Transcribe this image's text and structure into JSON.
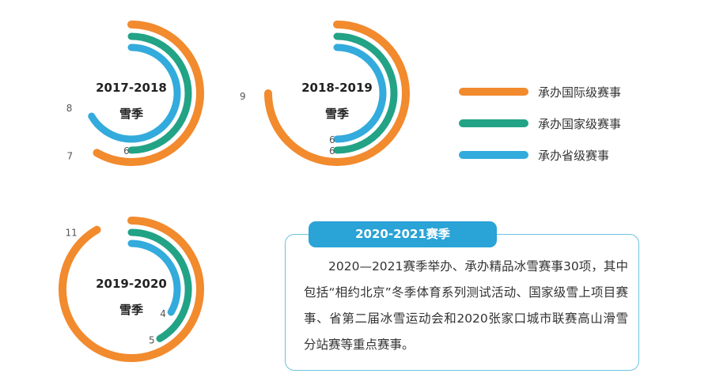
{
  "chart_data": {
    "type": "radial-bar",
    "legend": {
      "placement": "right",
      "entries": [
        {
          "key": "intl",
          "label": "承办国际级赛事",
          "color": "#f28a2e"
        },
        {
          "key": "national",
          "label": "承办国家级赛事",
          "color": "#22a386"
        },
        {
          "key": "provincial",
          "label": "承办省级赛事",
          "color": "#33abdc"
        }
      ]
    },
    "charts": [
      {
        "title_line1": "2017-2018",
        "title_line2": "雪季",
        "intl": 7,
        "national": 6,
        "provincial": 8,
        "labels": {
          "intl": "7",
          "national": "6",
          "provincial": "8"
        }
      },
      {
        "title_line1": "2018-2019",
        "title_line2": "雪季",
        "intl": 9,
        "national": 6,
        "provincial": 6,
        "labels": {
          "intl": "9",
          "national": "6",
          "provincial": "6"
        }
      },
      {
        "title_line1": "2019-2020",
        "title_line2": "雪季",
        "intl": 11,
        "national": 5,
        "provincial": 4,
        "labels": {
          "intl": "11",
          "national": "5",
          "provincial": "4"
        }
      }
    ],
    "max_value": 12
  },
  "info": {
    "title": "2020-2021赛季",
    "text": "2020—2021赛季举办、承办精品冰雪赛事30项，其中包括“相约北京”冬季体育系列测试活动、国家级雪上项目赛事、省第二届冰雪运动会和2020张家口城市联赛高山滑雪分站赛等重点赛事。"
  }
}
